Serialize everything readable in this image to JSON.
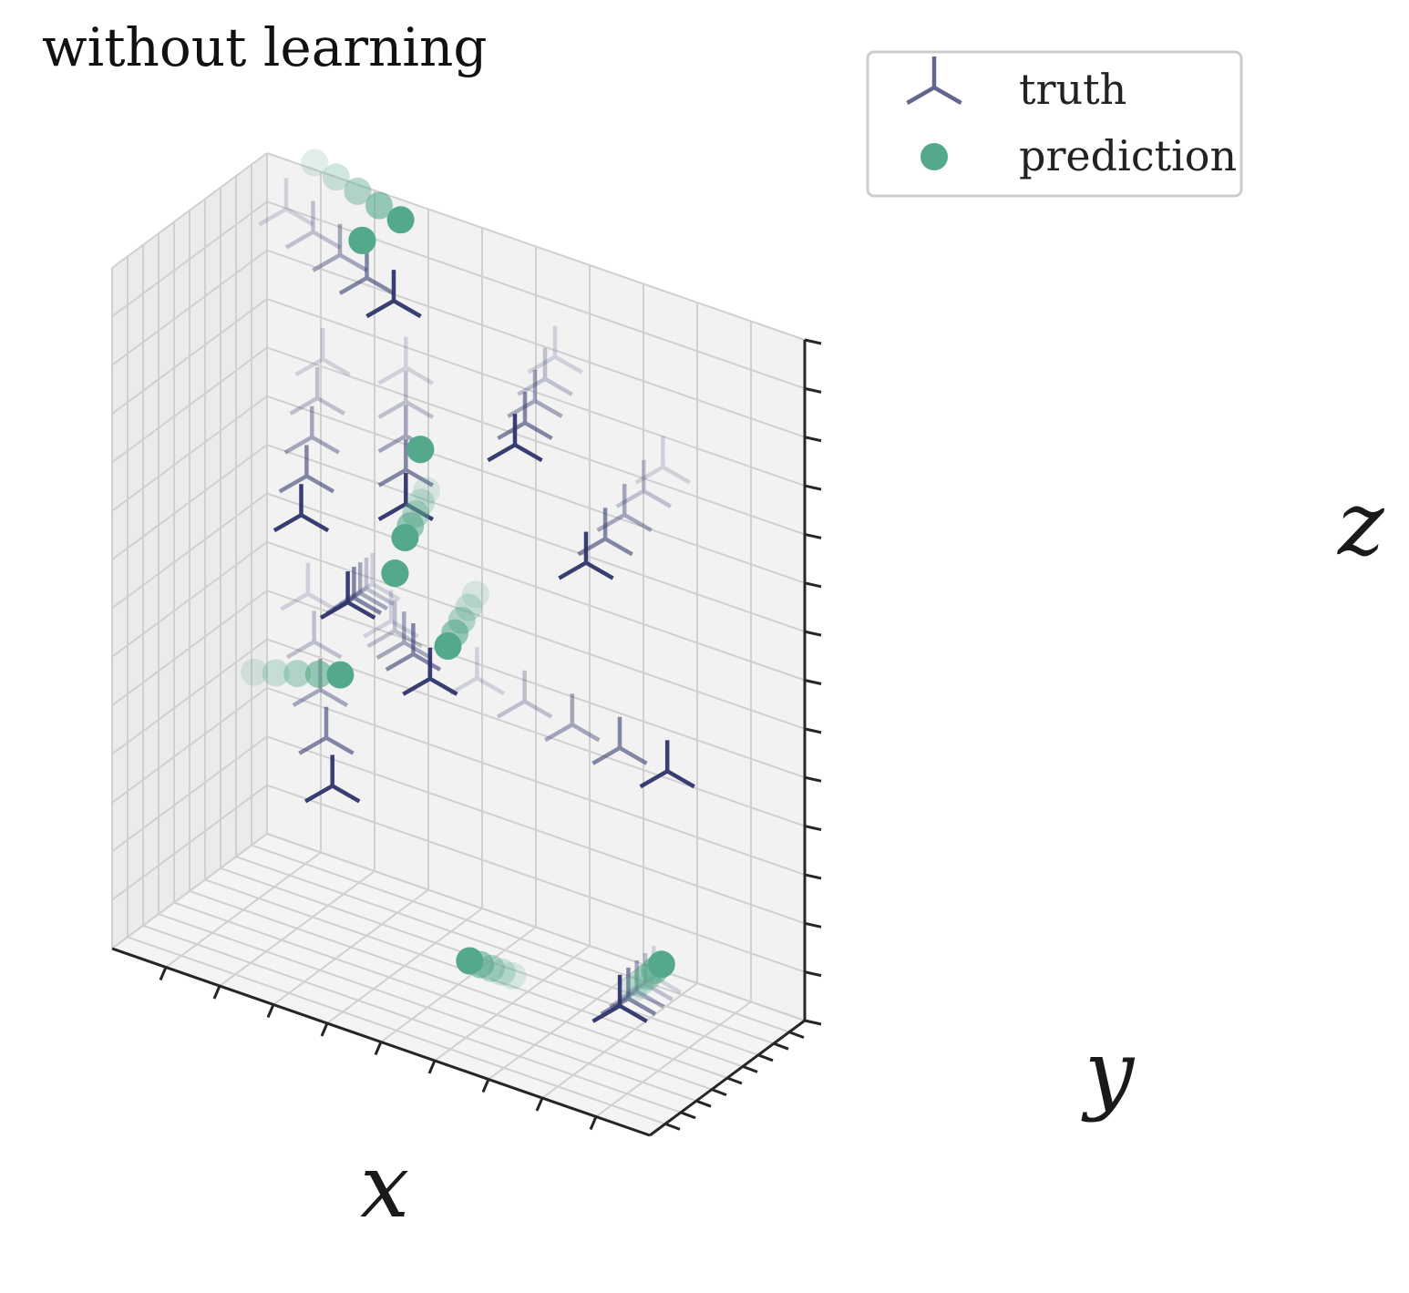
{
  "chart_data": {
    "type": "scatter",
    "projection": "3d",
    "title": "without learning",
    "xlabel": "x",
    "ylabel": "y",
    "zlabel": "z",
    "xlim": [
      0,
      10
    ],
    "ylim": [
      0,
      10
    ],
    "zlim": [
      0,
      10
    ],
    "grid": true,
    "tick_labels_shown": false,
    "legend_position": "top-right",
    "colors": {
      "truth": "#2f356b",
      "prediction": "#55a98b"
    },
    "series": [
      {
        "name": "truth",
        "marker": "tri-down",
        "points": [
          [
            0.5,
            9.5,
            9.4
          ],
          [
            1.0,
            9.5,
            9.2
          ],
          [
            1.5,
            9.5,
            9.0
          ],
          [
            2.0,
            9.5,
            8.8
          ],
          [
            2.5,
            9.5,
            8.6
          ],
          [
            5.5,
            9.5,
            8.6
          ],
          [
            5.4,
            9.2,
            8.3
          ],
          [
            5.3,
            8.9,
            8.0
          ],
          [
            5.2,
            8.6,
            7.7
          ],
          [
            5.1,
            8.3,
            7.4
          ],
          [
            1.9,
            7.0,
            8.0
          ],
          [
            1.8,
            7.0,
            7.4
          ],
          [
            1.7,
            7.0,
            6.8
          ],
          [
            1.6,
            7.0,
            6.2
          ],
          [
            1.5,
            7.0,
            5.6
          ],
          [
            3.1,
            8.2,
            8.0
          ],
          [
            3.1,
            8.2,
            7.5
          ],
          [
            3.1,
            8.2,
            7.0
          ],
          [
            3.1,
            8.2,
            6.5
          ],
          [
            3.1,
            8.2,
            6.0
          ],
          [
            3.4,
            6.2,
            4.7
          ],
          [
            3.5,
            6.1,
            4.6
          ],
          [
            3.7,
            6.0,
            4.5
          ],
          [
            3.9,
            5.9,
            4.4
          ],
          [
            4.3,
            5.6,
            4.2
          ],
          [
            3.0,
            6.4,
            5.1
          ],
          [
            3.0,
            6.0,
            5.1
          ],
          [
            3.0,
            5.6,
            5.1
          ],
          [
            3.0,
            5.2,
            5.1
          ],
          [
            3.0,
            4.8,
            5.1
          ],
          [
            2.0,
            5.7,
            4.8
          ],
          [
            2.2,
            5.4,
            4.2
          ],
          [
            2.4,
            5.1,
            3.6
          ],
          [
            2.6,
            4.8,
            3.0
          ],
          [
            2.8,
            4.5,
            2.4
          ],
          [
            5.0,
            6.2,
            4.3
          ],
          [
            6.0,
            5.8,
            4.3
          ],
          [
            7.0,
            5.4,
            4.3
          ],
          [
            8.0,
            5.0,
            4.3
          ],
          [
            9.0,
            4.6,
            4.3
          ],
          [
            8.4,
            6.4,
            8.3
          ],
          [
            8.1,
            6.2,
            7.9
          ],
          [
            7.8,
            6.0,
            7.5
          ],
          [
            7.5,
            5.8,
            7.1
          ],
          [
            7.2,
            5.6,
            6.7
          ],
          [
            9.9,
            0.6,
            2.2
          ],
          [
            9.8,
            0.4,
            2.1
          ],
          [
            9.7,
            0.2,
            2.0
          ],
          [
            9.6,
            0.0,
            1.9
          ],
          [
            9.5,
            -0.2,
            1.8
          ]
        ]
      },
      {
        "name": "prediction",
        "marker": "circle",
        "points": [
          [
            1.0,
            9.6,
            10.2
          ],
          [
            1.4,
            9.6,
            10.1
          ],
          [
            1.8,
            9.6,
            10.0
          ],
          [
            2.2,
            9.6,
            9.9
          ],
          [
            2.6,
            9.6,
            9.8
          ],
          [
            2.0,
            9.2,
            9.4
          ],
          [
            2.0,
            9.2,
            9.4
          ],
          [
            2.0,
            9.2,
            9.4
          ],
          [
            2.0,
            9.2,
            9.4
          ],
          [
            2.0,
            9.2,
            9.4
          ],
          [
            3.4,
            8.1,
            6.9
          ],
          [
            3.4,
            8.1,
            6.9
          ],
          [
            3.4,
            8.1,
            6.9
          ],
          [
            3.4,
            8.1,
            6.9
          ],
          [
            3.4,
            8.1,
            6.9
          ],
          [
            3.6,
            7.8,
            6.4
          ],
          [
            3.5,
            7.8,
            6.2
          ],
          [
            3.4,
            7.8,
            6.0
          ],
          [
            3.3,
            7.8,
            5.8
          ],
          [
            3.2,
            7.8,
            5.6
          ],
          [
            3.1,
            7.5,
            5.1
          ],
          [
            3.1,
            7.5,
            5.1
          ],
          [
            3.1,
            7.5,
            5.1
          ],
          [
            3.1,
            7.5,
            5.1
          ],
          [
            3.1,
            7.5,
            5.1
          ],
          [
            4.6,
            7.5,
            5.2
          ],
          [
            4.5,
            7.4,
            5.0
          ],
          [
            4.4,
            7.3,
            4.8
          ],
          [
            4.3,
            7.2,
            4.6
          ],
          [
            4.2,
            7.1,
            4.4
          ],
          [
            0.8,
            6.4,
            3.2
          ],
          [
            1.2,
            6.4,
            3.3
          ],
          [
            1.6,
            6.4,
            3.4
          ],
          [
            2.0,
            6.4,
            3.5
          ],
          [
            2.4,
            6.4,
            3.6
          ],
          [
            6.7,
            2.6,
            1.0
          ],
          [
            6.5,
            2.6,
            1.0
          ],
          [
            6.3,
            2.6,
            1.0
          ],
          [
            6.1,
            2.6,
            1.0
          ],
          [
            5.9,
            2.6,
            1.0
          ],
          [
            9.5,
            0.7,
            1.9
          ],
          [
            9.6,
            0.8,
            2.0
          ],
          [
            9.7,
            0.9,
            2.1
          ],
          [
            9.8,
            1.0,
            2.2
          ],
          [
            9.9,
            1.1,
            2.3
          ]
        ]
      }
    ]
  }
}
